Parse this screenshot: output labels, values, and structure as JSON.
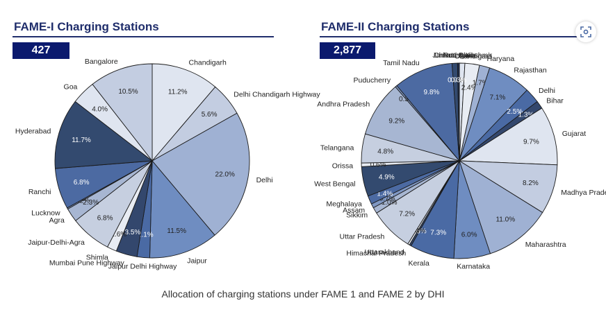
{
  "caption": "Allocation of charging stations under FAME 1 and FAME 2 by DHI",
  "chart_data": [
    {
      "type": "pie",
      "title": "FAME-I Charging Stations",
      "total": "427",
      "slices": [
        {
          "label": "Chandigarh",
          "value": 11.2,
          "value_label": "11.2%",
          "color": "#dfe5f0"
        },
        {
          "label": "Delhi Chandigarh Highway",
          "value": 5.6,
          "value_label": "5.6%",
          "color": "#c3cde1"
        },
        {
          "label": "Delhi",
          "value": 22.0,
          "value_label": "22.0%",
          "color": "#9fb1d3"
        },
        {
          "label": "Jaipur",
          "value": 11.5,
          "value_label": "11.5%",
          "color": "#6f8dc1"
        },
        {
          "label": "Jaipur Delhi Highway",
          "value": 2.1,
          "value_label": "2.1%",
          "color": "#4a6aa4"
        },
        {
          "label": "Mumbai Pune Highway",
          "value": 3.5,
          "value_label": "3.5%",
          "color": "#33476d"
        },
        {
          "label": "Shimla",
          "value": 1.6,
          "value_label": "1.6%",
          "color": "#e8ecf3"
        },
        {
          "label": "Jaipur-Delhi-Agra",
          "value": 6.8,
          "value_label": "6.8%",
          "color": "#c6cfe0"
        },
        {
          "label": "Agra",
          "value": 2.3,
          "value_label": "2.3%",
          "color": "#a7b6d2"
        },
        {
          "label": "Lucknow",
          "value": 0.2,
          "value_label": "0.2%",
          "color": "#7f97c3"
        },
        {
          "label": "Ranchi",
          "value": 6.8,
          "value_label": "6.8%",
          "color": "#4c6aa2"
        },
        {
          "label": "Hyderabad",
          "value": 11.7,
          "value_label": "11.7%",
          "color": "#334a6f"
        },
        {
          "label": "Goa",
          "value": 4.0,
          "value_label": "4.0%",
          "color": "#dfe5f0"
        },
        {
          "label": "Bangalore",
          "value": 10.5,
          "value_label": "10.5%",
          "color": "#c3cde1"
        }
      ]
    },
    {
      "type": "pie",
      "title": "FAME-II Charging Stations",
      "total": "2,877",
      "slices": [
        {
          "label": "Jammu & Kashmir",
          "value": 0.9,
          "value_label": "0.9%",
          "color": "#dfe5f0"
        },
        {
          "label": "Chandigarh",
          "value": 2.4,
          "value_label": "2.4%",
          "color": "#e8ecf3"
        },
        {
          "label": "Haryana",
          "value": 1.7,
          "value_label": "1.7%",
          "color": "#9fb1d3"
        },
        {
          "label": "Rajasthan",
          "value": 7.1,
          "value_label": "7.1%",
          "color": "#6f8dc1"
        },
        {
          "label": "Delhi",
          "value": 2.5,
          "value_label": "2.5%",
          "color": "#4a6aa4"
        },
        {
          "label": "Bihar",
          "value": 1.3,
          "value_label": "1.3%",
          "color": "#33476d"
        },
        {
          "label": "Gujarat",
          "value": 9.7,
          "value_label": "9.7%",
          "color": "#dfe5f0"
        },
        {
          "label": "Madhya Pradesh",
          "value": 8.2,
          "value_label": "8.2%",
          "color": "#c3cde1"
        },
        {
          "label": "Maharashtra",
          "value": 11.0,
          "value_label": "11.0%",
          "color": "#9fb1d3"
        },
        {
          "label": "Karnataka",
          "value": 6.0,
          "value_label": "6.0%",
          "color": "#6f8dc1"
        },
        {
          "label": "Kerala",
          "value": 7.3,
          "value_label": "7.3%",
          "color": "#4a6aa4"
        },
        {
          "label": "Himachal Pradesh",
          "value": 0.3,
          "value_label": "0.3%",
          "color": "#33476d"
        },
        {
          "label": "Uttarakhand",
          "value": 0.3,
          "value_label": "0.3%",
          "color": "#e8ecf3"
        },
        {
          "label": "Uttar Pradesh",
          "value": 7.2,
          "value_label": "7.2%",
          "color": "#c6cfe0"
        },
        {
          "label": "Sikkim",
          "value": 1.0,
          "value_label": "1.0%",
          "color": "#a7b6d2"
        },
        {
          "label": "Assam",
          "value": 0.7,
          "value_label": "0.7%",
          "color": "#7f97c3"
        },
        {
          "label": "Meghalaya",
          "value": 1.4,
          "value_label": "1.4%",
          "color": "#4c6aa2"
        },
        {
          "label": "West Bengal",
          "value": 4.9,
          "value_label": "4.9%",
          "color": "#334a6f"
        },
        {
          "label": "Orissa",
          "value": 0.6,
          "value_label": "0.6%",
          "color": "#e8ecf3"
        },
        {
          "label": "Telangana",
          "value": 4.8,
          "value_label": "4.8%",
          "color": "#c6cfe0"
        },
        {
          "label": "Andhra Pradesh",
          "value": 9.2,
          "value_label": "9.2%",
          "color": "#a7b6d2"
        },
        {
          "label": "Puducherry",
          "value": 0.3,
          "value_label": "0.3%",
          "color": "#7f97c3"
        },
        {
          "label": "Tamil Nadu",
          "value": 9.8,
          "value_label": "9.8%",
          "color": "#4c6aa2"
        },
        {
          "label": "Chhattisgarh",
          "value": 0.9,
          "value_label": "0.9%",
          "color": "#334a6f"
        },
        {
          "label": "Port Blair",
          "value": 0.3,
          "value_label": "0.3%",
          "color": "#1f2d4d"
        }
      ]
    }
  ]
}
